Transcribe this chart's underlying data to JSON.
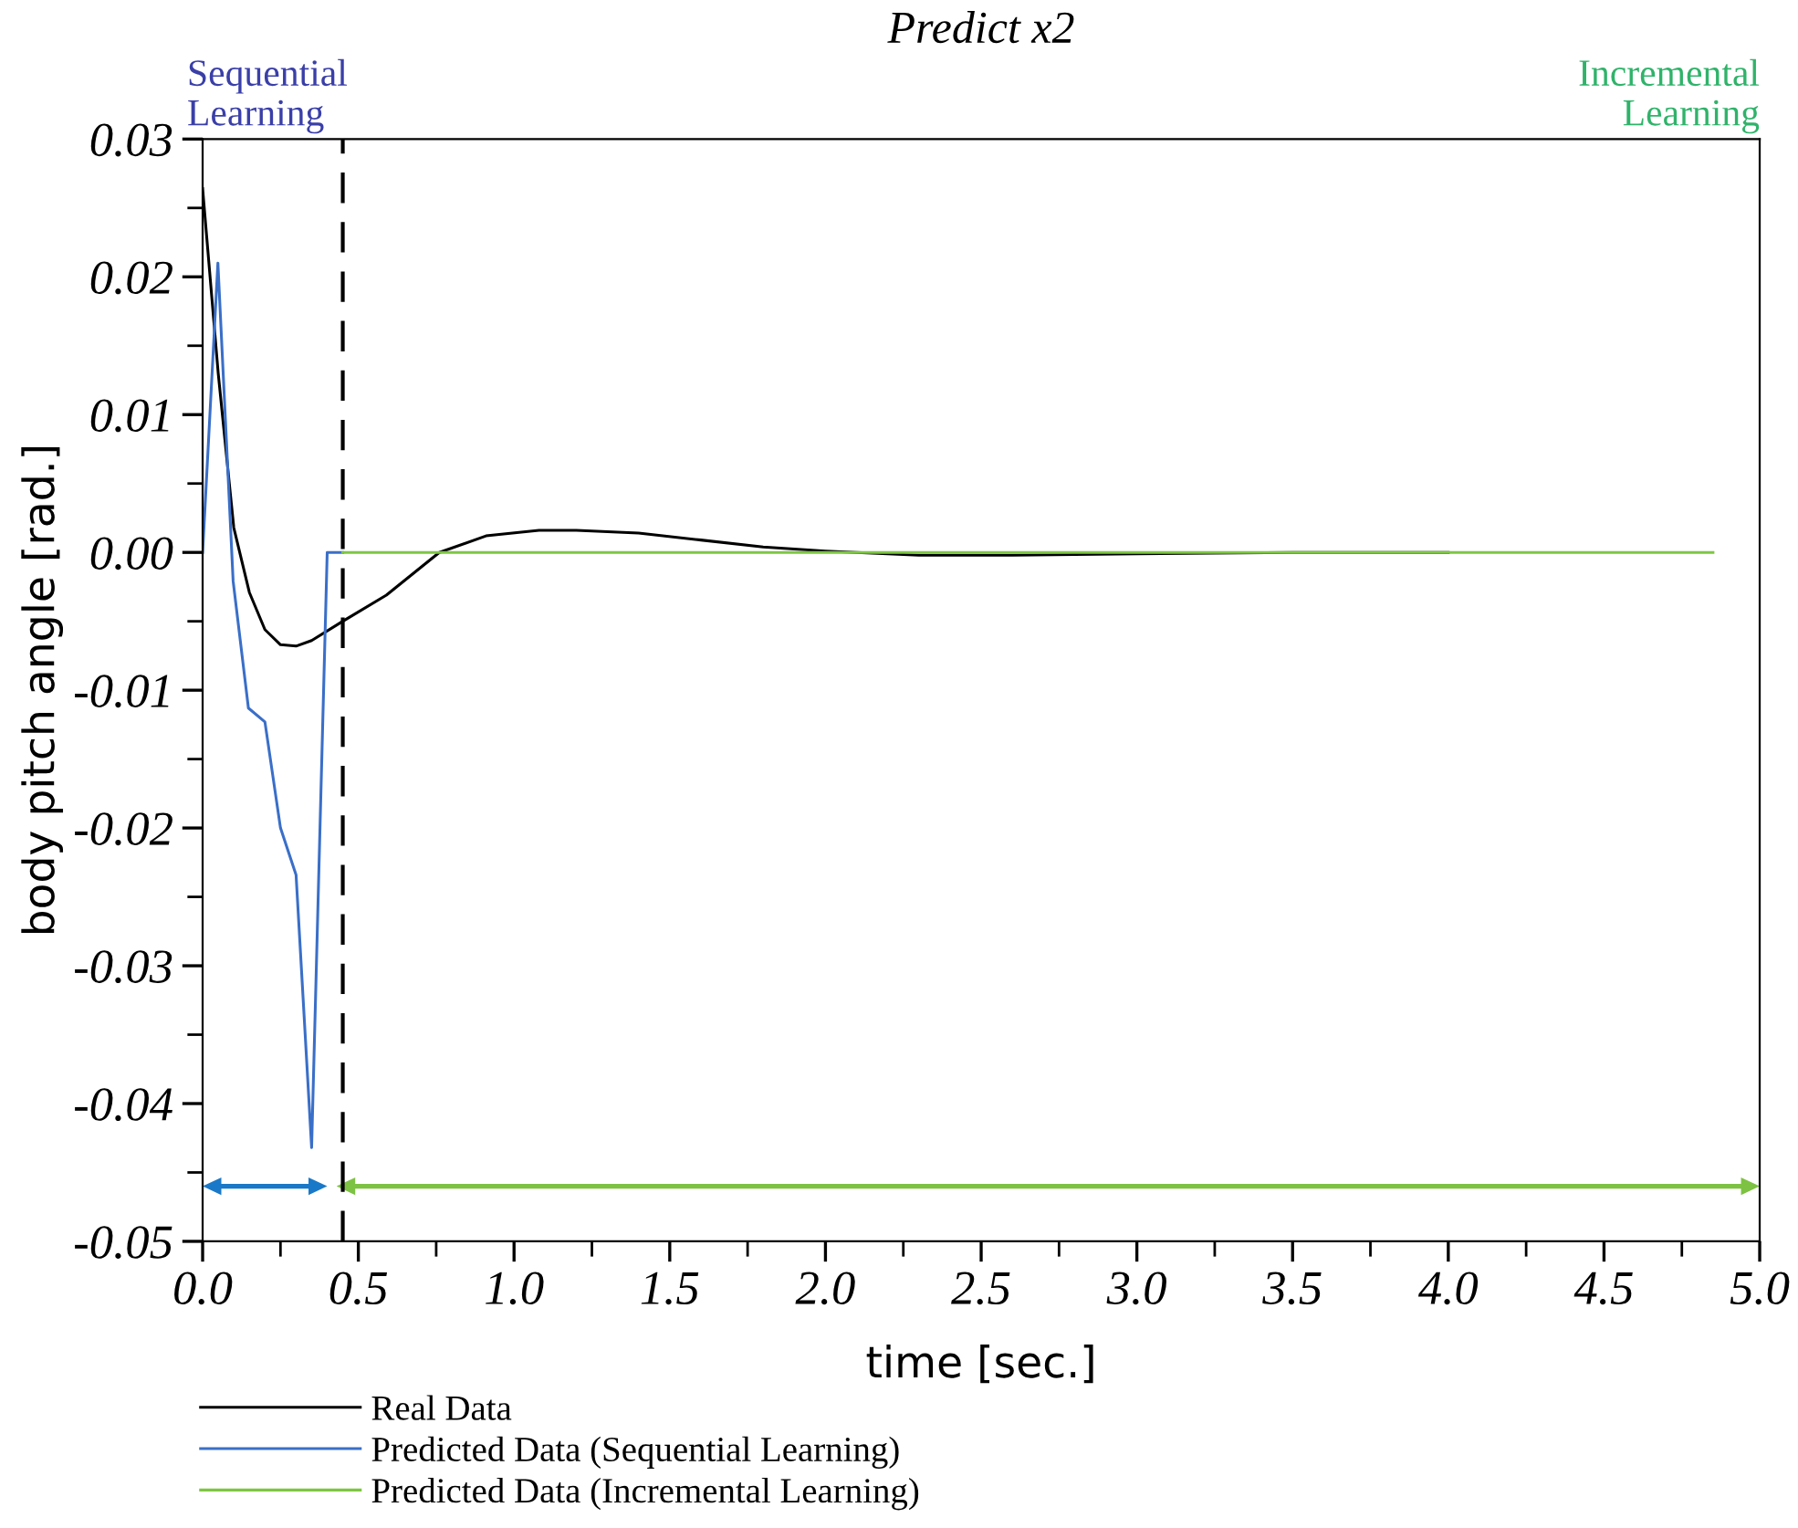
{
  "chart_data": {
    "type": "line",
    "title": "Predict x2",
    "xlabel": "time [sec.]",
    "ylabel": "body pitch angle [rad.]",
    "xlim": [
      0.0,
      5.0
    ],
    "xticks": [
      {
        "value": 0.0,
        "label": "0.0"
      },
      0.5,
      {
        "value": 1.0,
        "label": "1.0"
      },
      1.5,
      {
        "value": 2.0,
        "label": "2.0"
      },
      2.5,
      {
        "value": 3.0,
        "label": "3.0"
      },
      3.5,
      {
        "value": 4.0,
        "label": "4.0"
      },
      4.5,
      {
        "value": 5.0,
        "label": "5.0"
      }
    ],
    "ylim": [
      -0.05,
      0.03
    ],
    "yticks": [
      {
        "value": -0.05,
        "label": "-0.05"
      },
      {
        "value": -0.04,
        "label": "-0.04"
      },
      {
        "value": -0.03,
        "label": "-0.03"
      },
      {
        "value": -0.02,
        "label": "-0.02"
      },
      {
        "value": -0.01,
        "label": "-0.01"
      },
      {
        "value": 0.0,
        "label": "0.00"
      },
      0.01,
      0.02,
      0.03
    ],
    "grid": false,
    "legend": "bottom",
    "marker": "none",
    "line_style": "solid",
    "series": [
      {
        "name": "Real Data",
        "color": "#000000",
        "x": [
          0.0,
          0.05,
          0.1,
          0.15,
          0.2,
          0.25,
          0.3,
          0.35,
          0.45,
          0.59,
          0.76,
          0.91,
          1.08,
          1.2,
          1.4,
          1.6,
          1.8,
          2.0,
          2.3,
          2.6,
          3.0,
          3.5,
          4.0
        ],
        "values": [
          0.0264,
          0.013,
          0.0018,
          -0.0029,
          -0.0056,
          -0.0067,
          -0.0068,
          -0.0064,
          -0.005,
          -0.0031,
          0.0,
          0.0012,
          0.0016,
          0.0016,
          0.0014,
          0.0009,
          0.0004,
          0.0001,
          -0.0002,
          -0.0002,
          -0.0001,
          0.0,
          0.0
        ]
      },
      {
        "name": "Predicted Data (Sequential Learning)",
        "color": "#3a6fc8",
        "x": [
          0.0,
          0.049,
          0.098,
          0.147,
          0.2,
          0.25,
          0.3,
          0.35,
          0.4,
          0.45
        ],
        "values": [
          0.0,
          0.021,
          -0.0021,
          -0.0113,
          -0.0123,
          -0.02,
          -0.0234,
          -0.0432,
          0.0,
          0.0
        ]
      },
      {
        "name": "Predicted Data (Incremental Learning)",
        "color": "#7dc642",
        "x": [
          0.45,
          4.85
        ],
        "values": [
          0.0,
          0.0
        ]
      }
    ],
    "ref_lines": [
      {
        "axis": "x",
        "value": 0.45,
        "color": "#000000",
        "line_style": "dashed"
      }
    ],
    "annotations": [
      "Sequential\nLearning",
      "Incremental\nLearning"
    ]
  }
}
